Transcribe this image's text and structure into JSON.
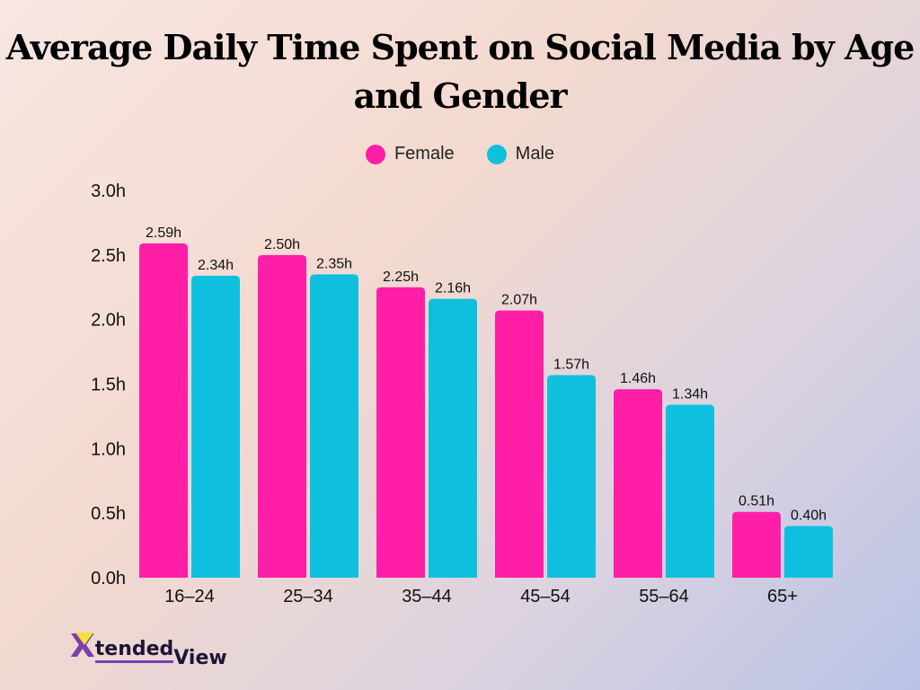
{
  "chart_data": {
    "type": "bar",
    "title": "Average Daily Time Spent on Social Media by Age and Gender",
    "categories": [
      "16–24",
      "25–34",
      "35–44",
      "45–54",
      "55–64",
      "65+"
    ],
    "series": [
      {
        "name": "Female",
        "color": "#ff1fa6",
        "values": [
          2.59,
          2.5,
          2.25,
          2.07,
          1.46,
          0.51
        ],
        "labels": [
          "2.59h",
          "2.50h",
          "2.25h",
          "2.07h",
          "1.46h",
          "0.51h"
        ]
      },
      {
        "name": "Male",
        "color": "#0fc0de",
        "values": [
          2.34,
          2.35,
          2.16,
          1.57,
          1.34,
          0.4
        ],
        "labels": [
          "2.34h",
          "2.35h",
          "2.16h",
          "1.57h",
          "1.34h",
          "0.40h"
        ]
      }
    ],
    "yticks": [
      "0.0h",
      "0.5h",
      "1.0h",
      "1.5h",
      "2.0h",
      "2.5h",
      "3.0h"
    ],
    "ylim": [
      0,
      3
    ],
    "grid": false,
    "legend": "top-center",
    "xlabel": "",
    "ylabel": ""
  },
  "logo": {
    "text_part1": "Xtended",
    "text_part2": "View"
  }
}
